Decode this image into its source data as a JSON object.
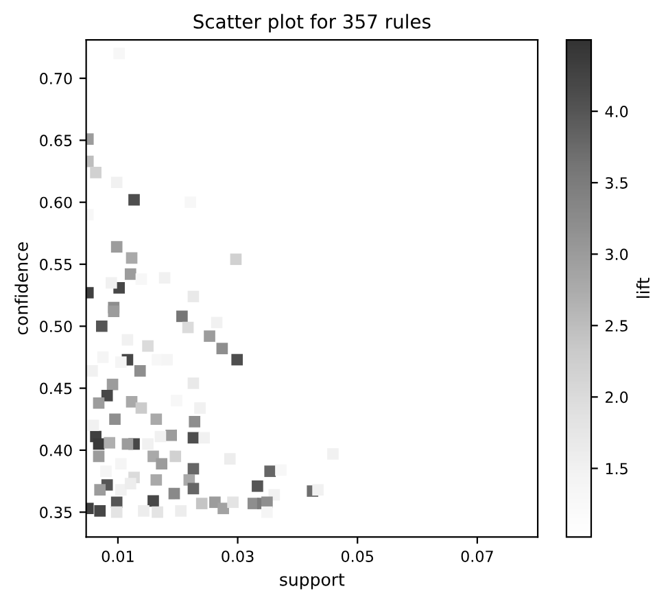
{
  "chart_data": {
    "type": "scatter",
    "title": "Scatter plot for 357 rules",
    "xlabel": "support",
    "ylabel": "confidence",
    "clabel": "lift",
    "marker": "square",
    "grid": false,
    "xlim": [
      0.0047,
      0.0801
    ],
    "ylim": [
      0.33,
      0.731
    ],
    "xticks": [
      0.01,
      0.03,
      0.05,
      0.07
    ],
    "yticks": [
      {
        "value": 0.35,
        "label": "0.35"
      },
      {
        "value": 0.4,
        "label": "0.40"
      },
      {
        "value": 0.45,
        "label": "0.45"
      },
      {
        "value": 0.5,
        "label": "0.50"
      },
      {
        "value": 0.55,
        "label": "0.55"
      },
      {
        "value": 0.6,
        "label": "0.60"
      },
      {
        "value": 0.65,
        "label": "0.65"
      },
      {
        "value": 0.7,
        "label": "0.70"
      }
    ],
    "clim": [
      1.02,
      4.5
    ],
    "cticks": [
      1.5,
      {
        "value": 2,
        "label": "2.0"
      },
      2.5,
      {
        "value": 3,
        "label": "3.0"
      },
      3.5,
      {
        "value": 4,
        "label": "4.0"
      }
    ],
    "x": [
      0.0102,
      0.005,
      0.005,
      0.0063,
      0.0098,
      0.0127,
      0.0221,
      0.005,
      0.0098,
      0.0123,
      0.0297,
      0.0121,
      0.0139,
      0.0178,
      0.0102,
      0.0089,
      0.0226,
      0.005,
      0.0093,
      0.0093,
      0.0073,
      0.0207,
      0.0217,
      0.0265,
      0.0253,
      0.0274,
      0.0299,
      0.0116,
      0.0105,
      0.015,
      0.0166,
      0.0182,
      0.0137,
      0.0116,
      0.0075,
      0.0091,
      0.0082,
      0.0068,
      0.0226,
      0.0198,
      0.0123,
      0.0139,
      0.0164,
      0.0095,
      0.0228,
      0.0237,
      0.0063,
      0.0068,
      0.0189,
      0.0226,
      0.0244,
      0.0127,
      0.0116,
      0.0171,
      0.015,
      0.0086,
      0.0068,
      0.0159,
      0.0173,
      0.0196,
      0.0226,
      0.0287,
      0.0105,
      0.008,
      0.0127,
      0.0164,
      0.0219,
      0.0082,
      0.007,
      0.0105,
      0.0226,
      0.0194,
      0.0333,
      0.0098,
      0.0159,
      0.005,
      0.007,
      0.0098,
      0.0143,
      0.0166,
      0.0205,
      0.024,
      0.0262,
      0.0276,
      0.0292,
      0.0326,
      0.0342,
      0.0121,
      0.0059,
      0.0057,
      0.0459,
      0.0354,
      0.0372,
      0.0425,
      0.0434,
      0.0361,
      0.0349,
      0.0349
    ],
    "values": [
      0.72,
      0.651,
      0.633,
      0.624,
      0.616,
      0.602,
      0.6,
      0.59,
      0.564,
      0.555,
      0.554,
      0.542,
      0.538,
      0.539,
      0.531,
      0.535,
      0.524,
      0.527,
      0.515,
      0.512,
      0.5,
      0.508,
      0.499,
      0.503,
      0.492,
      0.482,
      0.473,
      0.473,
      0.471,
      0.484,
      0.473,
      0.473,
      0.464,
      0.489,
      0.475,
      0.453,
      0.444,
      0.438,
      0.454,
      0.44,
      0.439,
      0.434,
      0.425,
      0.425,
      0.423,
      0.434,
      0.411,
      0.405,
      0.412,
      0.41,
      0.41,
      0.405,
      0.405,
      0.411,
      0.405,
      0.406,
      0.395,
      0.395,
      0.389,
      0.395,
      0.385,
      0.393,
      0.389,
      0.383,
      0.378,
      0.376,
      0.376,
      0.372,
      0.368,
      0.368,
      0.369,
      0.365,
      0.371,
      0.358,
      0.359,
      0.353,
      0.351,
      0.35,
      0.351,
      0.35,
      0.351,
      0.357,
      0.358,
      0.353,
      0.358,
      0.357,
      0.357,
      0.373,
      0.42,
      0.464,
      0.397,
      0.383,
      0.384,
      0.367,
      0.368,
      0.364,
      0.358,
      0.35
    ],
    "cvalues": [
      1.3,
      3.0,
      2.5,
      2.2,
      1.5,
      4.1,
      1.3,
      1.3,
      3.0,
      2.8,
      2.2,
      3.0,
      1.3,
      1.5,
      4.2,
      1.5,
      1.7,
      4.3,
      3.2,
      3.0,
      4.0,
      3.6,
      2.0,
      1.5,
      3.0,
      3.2,
      4.1,
      4.2,
      1.4,
      2.0,
      1.3,
      1.4,
      3.2,
      1.5,
      1.4,
      3.0,
      4.2,
      3.0,
      1.7,
      1.3,
      2.8,
      2.3,
      2.8,
      3.2,
      3.2,
      1.5,
      4.3,
      4.4,
      3.0,
      4.1,
      1.5,
      4.2,
      3.0,
      1.5,
      1.5,
      2.7,
      3.0,
      2.8,
      3.0,
      2.2,
      3.8,
      1.6,
      1.4,
      1.4,
      2.0,
      2.8,
      2.8,
      4.0,
      3.0,
      1.5,
      3.8,
      3.3,
      4.0,
      4.0,
      4.2,
      4.3,
      4.2,
      1.8,
      1.6,
      1.8,
      1.6,
      2.4,
      3.0,
      2.9,
      1.8,
      3.2,
      3.5,
      1.6,
      1.5,
      1.5,
      1.5,
      3.8,
      1.3,
      3.7,
      1.5,
      1.5,
      3.2,
      1.4
    ]
  }
}
